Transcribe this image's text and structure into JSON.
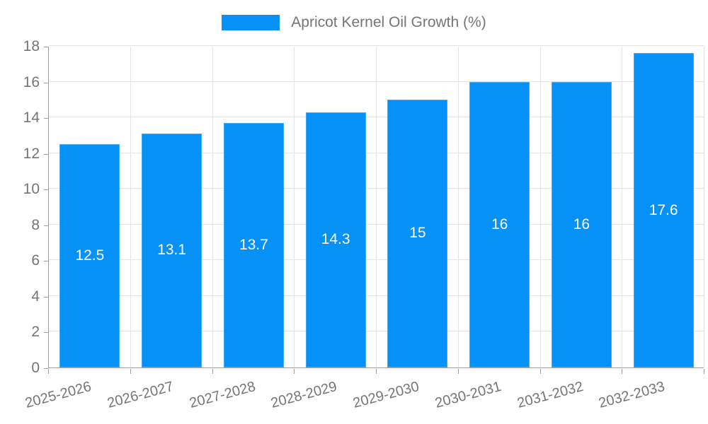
{
  "legend": {
    "label": "Apricot Kernel Oil Growth (%)"
  },
  "chart_data": {
    "type": "bar",
    "title": "Apricot Kernel Oil Growth (%)",
    "categories": [
      "2025-2026",
      "2026-2027",
      "2027-2028",
      "2028-2029",
      "2029-2030",
      "2030-2031",
      "2031-2032",
      "2032-2033"
    ],
    "series": [
      {
        "name": "Apricot Kernel Oil Growth (%)",
        "values": [
          12.5,
          13.1,
          13.7,
          14.3,
          15,
          16,
          16,
          17.6
        ],
        "value_labels": [
          "12.5",
          "13.1",
          "13.7",
          "14.3",
          "15",
          "16",
          "16",
          "17.6"
        ]
      }
    ],
    "xlabel": "",
    "ylabel": "",
    "ylim": [
      0,
      18
    ],
    "yticks": [
      0,
      2,
      4,
      6,
      8,
      10,
      12,
      14,
      16,
      18
    ],
    "grid": true,
    "legend_position": "top",
    "x_label_rotation_deg": -15,
    "colors": {
      "bar_fill": "#0591F5",
      "value_label": "#ffffff",
      "grid_line": "#e3e3e3",
      "axis_line": "#9e9e9e",
      "tick_label": "#757575",
      "legend_text": "#757575",
      "background": "#ffffff"
    }
  }
}
